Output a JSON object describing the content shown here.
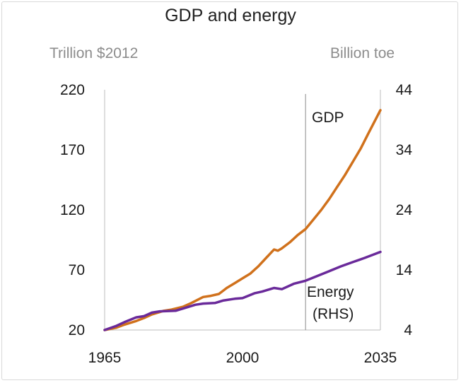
{
  "chart_data": {
    "type": "line",
    "title": "GDP and energy",
    "y_left_label": "Trillion $2012",
    "y_right_label": "Billion toe",
    "x_ticks": [
      1965,
      2000,
      2035
    ],
    "xlim": [
      1965,
      2035
    ],
    "y_left_ticks": [
      20,
      70,
      120,
      170,
      220
    ],
    "y_left_lim": [
      20,
      220
    ],
    "y_right_ticks": [
      4,
      14,
      24,
      34,
      44
    ],
    "y_right_lim": [
      4,
      44
    ],
    "divider_x": 2016,
    "grid": false,
    "series": [
      {
        "name": "GDP",
        "axis": "left",
        "color": "#d0711c",
        "x": [
          1965,
          1968,
          1970,
          1973,
          1975,
          1977,
          1980,
          1982,
          1985,
          1987,
          1990,
          1992,
          1994,
          1996,
          1998,
          2000,
          2002,
          2004,
          2006,
          2008,
          2009,
          2010,
          2012,
          2014,
          2016,
          2018,
          2020,
          2022,
          2024,
          2026,
          2028,
          2030,
          2032,
          2035
        ],
        "values": [
          20,
          22,
          24.5,
          27.5,
          30,
          33,
          36,
          37,
          39.5,
          42.5,
          47.5,
          48.5,
          50,
          55,
          59,
          63,
          67,
          73,
          80,
          87,
          86,
          88,
          93,
          99,
          104,
          112,
          120,
          129,
          139,
          149,
          160,
          171,
          184,
          203
        ]
      },
      {
        "name": "Energy (RHS)",
        "axis": "right",
        "color": "#6a2a9a",
        "x": [
          1965,
          1968,
          1970,
          1973,
          1975,
          1977,
          1979,
          1983,
          1985,
          1988,
          1990,
          1993,
          1995,
          1998,
          2000,
          2003,
          2005,
          2008,
          2010,
          2013,
          2016,
          2019,
          2022,
          2025,
          2028,
          2031,
          2035
        ],
        "values": [
          4,
          4.7,
          5.3,
          6.1,
          6.3,
          6.9,
          7.1,
          7.2,
          7.6,
          8.2,
          8.4,
          8.5,
          8.9,
          9.2,
          9.3,
          10.1,
          10.4,
          11.0,
          10.8,
          11.7,
          12.2,
          13.0,
          13.8,
          14.6,
          15.3,
          16.0,
          17.0
        ]
      }
    ],
    "annotations": {
      "gdp_label": "GDP",
      "energy_label_line1": "Energy",
      "energy_label_line2": "(RHS)"
    }
  }
}
